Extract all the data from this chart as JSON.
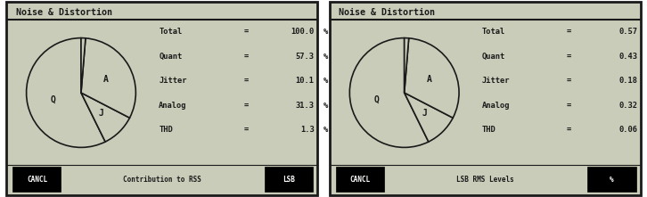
{
  "bg_color": "#c8ccb8",
  "border_color": "#1a1a1a",
  "text_color": "#1a1a1a",
  "font_family": "monospace",
  "panel1": {
    "title": "Noise & Distortion",
    "pie_values": [
      57.3,
      10.1,
      31.3,
      1.3
    ],
    "pie_labels": [
      "Q",
      "J",
      "A",
      ""
    ],
    "rows": [
      [
        "Total",
        "=",
        "100.0",
        "%"
      ],
      [
        "Quant",
        "=",
        "57.3",
        "%"
      ],
      [
        "Jitter",
        "=",
        "10.1",
        "%"
      ],
      [
        "Analog",
        "=",
        "31.3",
        "%"
      ],
      [
        "THD",
        "=",
        "1.3",
        "%"
      ]
    ],
    "bottom_left": "CANCL",
    "bottom_center": "Contribution to RSS",
    "bottom_right": "LSB"
  },
  "panel2": {
    "title": "Noise & Distortion",
    "pie_values": [
      57.3,
      10.1,
      31.3,
      1.3
    ],
    "pie_labels": [
      "Q",
      "J",
      "A",
      ""
    ],
    "rows": [
      [
        "Total",
        "=",
        "0.57",
        ""
      ],
      [
        "Quant",
        "=",
        "0.43",
        ""
      ],
      [
        "Jitter",
        "=",
        "0.18",
        ""
      ],
      [
        "Analog",
        "=",
        "0.32",
        ""
      ],
      [
        "THD",
        "=",
        "0.06",
        ""
      ]
    ],
    "bottom_left": "CANCL",
    "bottom_center": "LSB RMS Levels",
    "bottom_right": "%"
  }
}
